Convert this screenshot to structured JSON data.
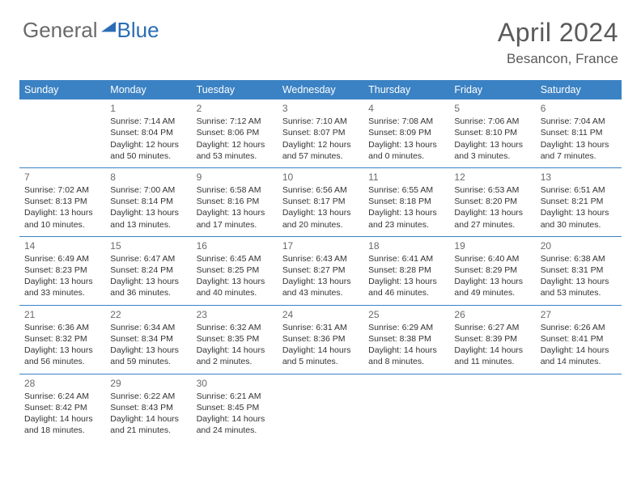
{
  "brand": {
    "part1": "General",
    "part2": "Blue"
  },
  "title": "April 2024",
  "location": "Besancon, France",
  "colors": {
    "header_bg": "#3b82c4",
    "row_border": "#3b82c4",
    "logo_blue": "#2a6db5",
    "logo_gray": "#6a6a6a",
    "text": "#333333",
    "muted": "#5a5a5a"
  },
  "daynames": [
    "Sunday",
    "Monday",
    "Tuesday",
    "Wednesday",
    "Thursday",
    "Friday",
    "Saturday"
  ],
  "weeks": [
    [
      {
        "empty": true
      },
      {
        "num": "1",
        "sunrise": "7:14 AM",
        "sunset": "8:04 PM",
        "day1": "Daylight: 12 hours",
        "day2": "and 50 minutes."
      },
      {
        "num": "2",
        "sunrise": "7:12 AM",
        "sunset": "8:06 PM",
        "day1": "Daylight: 12 hours",
        "day2": "and 53 minutes."
      },
      {
        "num": "3",
        "sunrise": "7:10 AM",
        "sunset": "8:07 PM",
        "day1": "Daylight: 12 hours",
        "day2": "and 57 minutes."
      },
      {
        "num": "4",
        "sunrise": "7:08 AM",
        "sunset": "8:09 PM",
        "day1": "Daylight: 13 hours",
        "day2": "and 0 minutes."
      },
      {
        "num": "5",
        "sunrise": "7:06 AM",
        "sunset": "8:10 PM",
        "day1": "Daylight: 13 hours",
        "day2": "and 3 minutes."
      },
      {
        "num": "6",
        "sunrise": "7:04 AM",
        "sunset": "8:11 PM",
        "day1": "Daylight: 13 hours",
        "day2": "and 7 minutes."
      }
    ],
    [
      {
        "num": "7",
        "sunrise": "7:02 AM",
        "sunset": "8:13 PM",
        "day1": "Daylight: 13 hours",
        "day2": "and 10 minutes."
      },
      {
        "num": "8",
        "sunrise": "7:00 AM",
        "sunset": "8:14 PM",
        "day1": "Daylight: 13 hours",
        "day2": "and 13 minutes."
      },
      {
        "num": "9",
        "sunrise": "6:58 AM",
        "sunset": "8:16 PM",
        "day1": "Daylight: 13 hours",
        "day2": "and 17 minutes."
      },
      {
        "num": "10",
        "sunrise": "6:56 AM",
        "sunset": "8:17 PM",
        "day1": "Daylight: 13 hours",
        "day2": "and 20 minutes."
      },
      {
        "num": "11",
        "sunrise": "6:55 AM",
        "sunset": "8:18 PM",
        "day1": "Daylight: 13 hours",
        "day2": "and 23 minutes."
      },
      {
        "num": "12",
        "sunrise": "6:53 AM",
        "sunset": "8:20 PM",
        "day1": "Daylight: 13 hours",
        "day2": "and 27 minutes."
      },
      {
        "num": "13",
        "sunrise": "6:51 AM",
        "sunset": "8:21 PM",
        "day1": "Daylight: 13 hours",
        "day2": "and 30 minutes."
      }
    ],
    [
      {
        "num": "14",
        "sunrise": "6:49 AM",
        "sunset": "8:23 PM",
        "day1": "Daylight: 13 hours",
        "day2": "and 33 minutes."
      },
      {
        "num": "15",
        "sunrise": "6:47 AM",
        "sunset": "8:24 PM",
        "day1": "Daylight: 13 hours",
        "day2": "and 36 minutes."
      },
      {
        "num": "16",
        "sunrise": "6:45 AM",
        "sunset": "8:25 PM",
        "day1": "Daylight: 13 hours",
        "day2": "and 40 minutes."
      },
      {
        "num": "17",
        "sunrise": "6:43 AM",
        "sunset": "8:27 PM",
        "day1": "Daylight: 13 hours",
        "day2": "and 43 minutes."
      },
      {
        "num": "18",
        "sunrise": "6:41 AM",
        "sunset": "8:28 PM",
        "day1": "Daylight: 13 hours",
        "day2": "and 46 minutes."
      },
      {
        "num": "19",
        "sunrise": "6:40 AM",
        "sunset": "8:29 PM",
        "day1": "Daylight: 13 hours",
        "day2": "and 49 minutes."
      },
      {
        "num": "20",
        "sunrise": "6:38 AM",
        "sunset": "8:31 PM",
        "day1": "Daylight: 13 hours",
        "day2": "and 53 minutes."
      }
    ],
    [
      {
        "num": "21",
        "sunrise": "6:36 AM",
        "sunset": "8:32 PM",
        "day1": "Daylight: 13 hours",
        "day2": "and 56 minutes."
      },
      {
        "num": "22",
        "sunrise": "6:34 AM",
        "sunset": "8:34 PM",
        "day1": "Daylight: 13 hours",
        "day2": "and 59 minutes."
      },
      {
        "num": "23",
        "sunrise": "6:32 AM",
        "sunset": "8:35 PM",
        "day1": "Daylight: 14 hours",
        "day2": "and 2 minutes."
      },
      {
        "num": "24",
        "sunrise": "6:31 AM",
        "sunset": "8:36 PM",
        "day1": "Daylight: 14 hours",
        "day2": "and 5 minutes."
      },
      {
        "num": "25",
        "sunrise": "6:29 AM",
        "sunset": "8:38 PM",
        "day1": "Daylight: 14 hours",
        "day2": "and 8 minutes."
      },
      {
        "num": "26",
        "sunrise": "6:27 AM",
        "sunset": "8:39 PM",
        "day1": "Daylight: 14 hours",
        "day2": "and 11 minutes."
      },
      {
        "num": "27",
        "sunrise": "6:26 AM",
        "sunset": "8:41 PM",
        "day1": "Daylight: 14 hours",
        "day2": "and 14 minutes."
      }
    ],
    [
      {
        "num": "28",
        "sunrise": "6:24 AM",
        "sunset": "8:42 PM",
        "day1": "Daylight: 14 hours",
        "day2": "and 18 minutes."
      },
      {
        "num": "29",
        "sunrise": "6:22 AM",
        "sunset": "8:43 PM",
        "day1": "Daylight: 14 hours",
        "day2": "and 21 minutes."
      },
      {
        "num": "30",
        "sunrise": "6:21 AM",
        "sunset": "8:45 PM",
        "day1": "Daylight: 14 hours",
        "day2": "and 24 minutes."
      },
      {
        "empty": true
      },
      {
        "empty": true
      },
      {
        "empty": true
      },
      {
        "empty": true
      }
    ]
  ],
  "labels": {
    "sunrise_prefix": "Sunrise: ",
    "sunset_prefix": "Sunset: "
  }
}
